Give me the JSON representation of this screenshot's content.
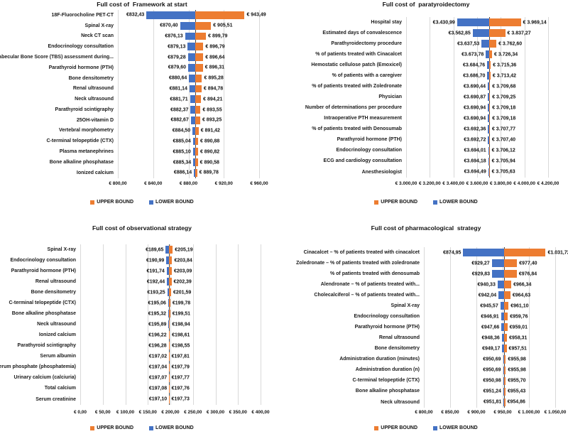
{
  "figure": {
    "background": "#ffffff",
    "colors": {
      "upper_bound": "#ED7D31",
      "lower_bound": "#4472C4",
      "gridline": "#d9d9d9",
      "base_axis_line": "#4a4a4a",
      "text": "#111111"
    }
  },
  "legend": {
    "upper_label": "UPPER BOUND",
    "lower_label": "LOWER BOUND"
  },
  "chart_data": [
    {
      "type": "bar",
      "variant": "tornado",
      "title": "Full cost of  Framework at start",
      "legend_position": "bottom",
      "grid": true,
      "base_value": 887.96,
      "axis": {
        "min": 800,
        "max": 960,
        "tick_step": 40,
        "tick_values": [
          800,
          840,
          880,
          920,
          960
        ],
        "tick_labels": [
          "€ 800,00",
          "€ 840,00",
          "€ 880,00",
          "€ 920,00",
          "€ 960,00"
        ]
      },
      "rows": [
        {
          "category": "18F-Fluorocholine PET-CT",
          "lower": 832.43,
          "upper": 943.49,
          "lower_label": "€832,43",
          "upper_label": "€ 943,49"
        },
        {
          "category": "Spinal X-ray",
          "lower": 870.4,
          "upper": 905.51,
          "lower_label": "€870,40",
          "upper_label": "€ 905,51"
        },
        {
          "category": "Neck CT scan",
          "lower": 876.13,
          "upper": 899.79,
          "lower_label": "€876,13",
          "upper_label": "€ 899,79"
        },
        {
          "category": "Endocrinology consultation",
          "lower": 879.13,
          "upper": 896.79,
          "lower_label": "€879,13",
          "upper_label": "€ 896,79"
        },
        {
          "category": "Trabecular Bone Score (TBS) assessment during...",
          "lower": 879.28,
          "upper": 896.64,
          "lower_label": "€879,28",
          "upper_label": "€ 896,64"
        },
        {
          "category": "Parathyroid hormone (PTH)",
          "lower": 879.6,
          "upper": 896.31,
          "lower_label": "€879,60",
          "upper_label": "€ 896,31"
        },
        {
          "category": "Bone densitometry",
          "lower": 880.64,
          "upper": 895.28,
          "lower_label": "€880,64",
          "upper_label": "€ 895,28"
        },
        {
          "category": "Renal ultrasound",
          "lower": 881.14,
          "upper": 894.78,
          "lower_label": "€881,14",
          "upper_label": "€ 894,78"
        },
        {
          "category": "Neck ultrasound",
          "lower": 881.71,
          "upper": 894.21,
          "lower_label": "€881,71",
          "upper_label": "€ 894,21"
        },
        {
          "category": "Parathyroid scintigraphy",
          "lower": 882.37,
          "upper": 893.55,
          "lower_label": "€882,37",
          "upper_label": "€ 893,55"
        },
        {
          "category": "25OH-vitamin D",
          "lower": 882.67,
          "upper": 893.25,
          "lower_label": "€882,67",
          "upper_label": "€ 893,25"
        },
        {
          "category": "Vertebral morphometry",
          "lower": 884.5,
          "upper": 891.42,
          "lower_label": "€884,50",
          "upper_label": "€ 891,42"
        },
        {
          "category": "C-terminal telopeptide (CTX)",
          "lower": 885.04,
          "upper": 890.88,
          "lower_label": "€885,04",
          "upper_label": "€ 890,88"
        },
        {
          "category": "Plasma metanephrines",
          "lower": 885.1,
          "upper": 890.82,
          "lower_label": "€885,10",
          "upper_label": "€ 890,82"
        },
        {
          "category": "Bone alkaline phosphatase",
          "lower": 885.34,
          "upper": 890.58,
          "lower_label": "€885,34",
          "upper_label": "€ 890,58"
        },
        {
          "category": "Ionized calcium",
          "lower": 886.14,
          "upper": 889.78,
          "lower_label": "€886,14",
          "upper_label": "€ 889,78"
        }
      ]
    },
    {
      "type": "bar",
      "variant": "tornado",
      "title": "Full cost of  paratyroidectomy",
      "legend_position": "bottom",
      "grid": true,
      "base_value": 3700.06,
      "axis": {
        "min": 3000,
        "max": 4200,
        "tick_step": 200,
        "tick_values": [
          3000,
          3200,
          3400,
          3600,
          3800,
          4000,
          4200
        ],
        "tick_labels": [
          "€ 3.000,00",
          "€ 3.200,00",
          "€ 3.400,00",
          "€ 3.600,00",
          "€ 3.800,00",
          "€ 4.000,00",
          "€ 4.200,00"
        ]
      },
      "rows": [
        {
          "category": "Hospital stay",
          "lower": 3430.99,
          "upper": 3969.14,
          "lower_label": "€3.430,99",
          "upper_label": "€ 3.969,14"
        },
        {
          "category": "Estimated days of convalescence",
          "lower": 3562.85,
          "upper": 3837.27,
          "lower_label": "€3.562,85",
          "upper_label": "€ 3.837,27"
        },
        {
          "category": "Parathyroidectomy procedure",
          "lower": 3637.53,
          "upper": 3762.6,
          "lower_label": "€3.637,53",
          "upper_label": "€ 3.762,60"
        },
        {
          "category": "% of patients treated with Cinacalcet",
          "lower": 3673.78,
          "upper": 3726.34,
          "lower_label": "€3.673,78",
          "upper_label": "€ 3.726,34"
        },
        {
          "category": "Hemostatic cellulose patch (Emoxicel)",
          "lower": 3684.76,
          "upper": 3715.36,
          "lower_label": "€3.684,76",
          "upper_label": "€ 3.715,36"
        },
        {
          "category": "% of patients with a caregiver",
          "lower": 3686.7,
          "upper": 3713.42,
          "lower_label": "€3.686,70",
          "upper_label": "€ 3.713,42"
        },
        {
          "category": "% of patients treated with Zoledronate",
          "lower": 3690.44,
          "upper": 3709.68,
          "lower_label": "€3.690,44",
          "upper_label": "€ 3.709,68"
        },
        {
          "category": "Physician",
          "lower": 3690.87,
          "upper": 3709.25,
          "lower_label": "€3.690,87",
          "upper_label": "€ 3.709,25"
        },
        {
          "category": "Number of determinations per procedure",
          "lower": 3690.94,
          "upper": 3709.18,
          "lower_label": "€3.690,94",
          "upper_label": "€ 3.709,18"
        },
        {
          "category": "Intraoperative PTH measurement",
          "lower": 3690.94,
          "upper": 3709.18,
          "lower_label": "€3.690,94",
          "upper_label": "€ 3.709,18"
        },
        {
          "category": "% of patients treated with Denosumab",
          "lower": 3692.36,
          "upper": 3707.77,
          "lower_label": "€3.692,36",
          "upper_label": "€ 3.707,77"
        },
        {
          "category": "Parathyroid hormone (PTH)",
          "lower": 3692.72,
          "upper": 3707.4,
          "lower_label": "€3.692,72",
          "upper_label": "€ 3.707,40"
        },
        {
          "category": "Endocrinology consultation",
          "lower": 3694.01,
          "upper": 3706.12,
          "lower_label": "€3.694,01",
          "upper_label": "€ 3.706,12"
        },
        {
          "category": "ECG and cardiology consultation",
          "lower": 3694.18,
          "upper": 3705.94,
          "lower_label": "€3.694,18",
          "upper_label": "€ 3.705,94"
        },
        {
          "category": "Anesthesiologist",
          "lower": 3694.49,
          "upper": 3705.63,
          "lower_label": "€3.694,49",
          "upper_label": "€ 3.705,63"
        }
      ]
    },
    {
      "type": "bar",
      "variant": "tornado",
      "title": "Full cost of observational strategy",
      "legend_position": "bottom",
      "grid": true,
      "base_value": 197.42,
      "axis": {
        "min": 0,
        "max": 400,
        "tick_step": 50,
        "tick_values": [
          0,
          50,
          100,
          150,
          200,
          250,
          300,
          350,
          400
        ],
        "tick_labels": [
          "€ 0,00",
          "€ 50,00",
          "€ 100,00",
          "€ 150,00",
          "€ 200,00",
          "€ 250,00",
          "€ 300,00",
          "€ 350,00",
          "€ 400,00"
        ]
      },
      "rows": [
        {
          "category": "Spinal X-ray",
          "lower": 189.65,
          "upper": 205.19,
          "lower_label": "€189,65",
          "upper_label": "€205,19"
        },
        {
          "category": "Endocrinology consultation",
          "lower": 190.99,
          "upper": 203.84,
          "lower_label": "€190,99",
          "upper_label": "€203,84"
        },
        {
          "category": "Parathyroid hormone (PTH)",
          "lower": 191.74,
          "upper": 203.09,
          "lower_label": "€191,74",
          "upper_label": "€203,09"
        },
        {
          "category": "Renal ultrasound",
          "lower": 192.44,
          "upper": 202.39,
          "lower_label": "€192,44",
          "upper_label": "€202,39"
        },
        {
          "category": "Bone densitometry",
          "lower": 193.25,
          "upper": 201.59,
          "lower_label": "€193,25",
          "upper_label": "€201,59"
        },
        {
          "category": "C-terminal telopeptide (CTX)",
          "lower": 195.06,
          "upper": 199.78,
          "lower_label": "€195,06",
          "upper_label": "€199,78"
        },
        {
          "category": "Bone alkaline phosphatase",
          "lower": 195.32,
          "upper": 199.51,
          "lower_label": "€195,32",
          "upper_label": "€199,51"
        },
        {
          "category": "Neck ultrasound",
          "lower": 195.89,
          "upper": 198.94,
          "lower_label": "€195,89",
          "upper_label": "€198,94"
        },
        {
          "category": "Ionized calcium",
          "lower": 196.22,
          "upper": 198.61,
          "lower_label": "€196,22",
          "upper_label": "€198,61"
        },
        {
          "category": "Parathyroid scintigraphy",
          "lower": 196.28,
          "upper": 198.55,
          "lower_label": "€196,28",
          "upper_label": "€198,55"
        },
        {
          "category": "Serum albumin",
          "lower": 197.02,
          "upper": 197.81,
          "lower_label": "€197,02",
          "upper_label": "€197,81"
        },
        {
          "category": "Serum phosphate (phosphatemia)",
          "lower": 197.04,
          "upper": 197.79,
          "lower_label": "€197,04",
          "upper_label": "€197,79"
        },
        {
          "category": "Urinary calcium (calciuria)",
          "lower": 197.07,
          "upper": 197.77,
          "lower_label": "€197,07",
          "upper_label": "€197,77"
        },
        {
          "category": "Total calcium",
          "lower": 197.08,
          "upper": 197.76,
          "lower_label": "€197,08",
          "upper_label": "€197,76"
        },
        {
          "category": "Serum creatinine",
          "lower": 197.1,
          "upper": 197.73,
          "lower_label": "€197,10",
          "upper_label": "€197,73"
        }
      ]
    },
    {
      "type": "bar",
      "variant": "tornado",
      "title": "Full cost of pharmacological  strategy",
      "legend_position": "bottom",
      "grid": true,
      "base_value": 953.34,
      "axis": {
        "min": 800,
        "max": 1050,
        "tick_step": 50,
        "tick_values": [
          800,
          850,
          900,
          950,
          1000,
          1050
        ],
        "tick_labels": [
          "€ 800,00",
          "€ 850,00",
          "€ 900,00",
          "€ 950,00",
          "€ 1.000,00",
          "€ 1.050,00"
        ]
      },
      "rows": [
        {
          "category": "Cinacalcet – % of patients treated with cinacalcet",
          "lower": 874.95,
          "upper": 1031.72,
          "lower_label": "€874,95",
          "upper_label": "€1.031,72"
        },
        {
          "category": "Zoledronate – % of patients treated with zoledronate",
          "lower": 929.27,
          "upper": 977.4,
          "lower_label": "€929,27",
          "upper_label": "€977,40"
        },
        {
          "category": "% of patients treated with denosumab",
          "lower": 929.83,
          "upper": 976.84,
          "lower_label": "€929,83",
          "upper_label": "€976,84"
        },
        {
          "category": "Alendronate – % of patients treated with...",
          "lower": 940.33,
          "upper": 966.34,
          "lower_label": "€940,33",
          "upper_label": "€966,34"
        },
        {
          "category": "Cholecalciferol – % of patients treated with...",
          "lower": 942.04,
          "upper": 964.63,
          "lower_label": "€942,04",
          "upper_label": "€964,63"
        },
        {
          "category": "Spinal X-ray",
          "lower": 945.57,
          "upper": 961.1,
          "lower_label": "€945,57",
          "upper_label": "€961,10"
        },
        {
          "category": "Endocrinology consultation",
          "lower": 946.91,
          "upper": 959.76,
          "lower_label": "€946,91",
          "upper_label": "€959,76"
        },
        {
          "category": "Parathyroid hormone (PTH)",
          "lower": 947.66,
          "upper": 959.01,
          "lower_label": "€947,66",
          "upper_label": "€959,01"
        },
        {
          "category": "Renal ultrasound",
          "lower": 948.36,
          "upper": 958.31,
          "lower_label": "€948,36",
          "upper_label": "€958,31"
        },
        {
          "category": "Bone densitometry",
          "lower": 949.17,
          "upper": 957.51,
          "lower_label": "€949,17",
          "upper_label": "€957,51"
        },
        {
          "category": "Administration duration (minutes)",
          "lower": 950.69,
          "upper": 955.98,
          "lower_label": "€950,69",
          "upper_label": "€955,98"
        },
        {
          "category": "Administration duration (n)",
          "lower": 950.69,
          "upper": 955.98,
          "lower_label": "€950,69",
          "upper_label": "€955,98"
        },
        {
          "category": "C-terminal telopeptide (CTX)",
          "lower": 950.98,
          "upper": 955.7,
          "lower_label": "€950,98",
          "upper_label": "€955,70"
        },
        {
          "category": "Bone alkaline phosphatase",
          "lower": 951.24,
          "upper": 955.43,
          "lower_label": "€951,24",
          "upper_label": "€955,43"
        },
        {
          "category": "Neck ultrasound",
          "lower": 951.81,
          "upper": 954.86,
          "lower_label": "€951,81",
          "upper_label": "€954,86"
        }
      ]
    }
  ]
}
